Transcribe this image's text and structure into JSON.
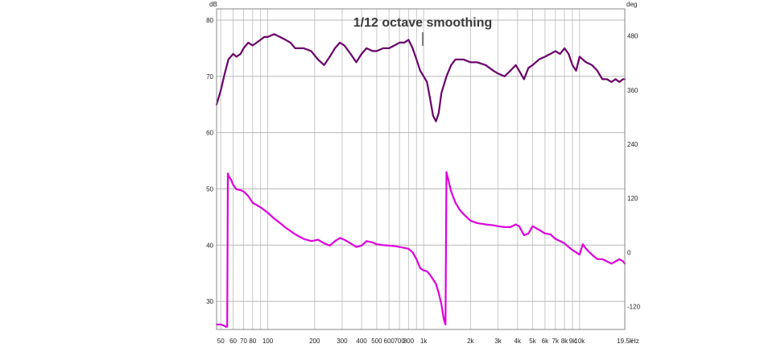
{
  "chart_data": {
    "type": "line",
    "title": "",
    "annotation": "1/12 octave smoothing",
    "x_axis": {
      "scale": "log",
      "range": [
        47,
        19500
      ],
      "unit_label": "Hz",
      "tick_values": [
        50,
        60,
        70,
        80,
        100,
        200,
        300,
        400,
        500,
        600,
        700,
        800,
        1000,
        2000,
        3000,
        4000,
        5000,
        6000,
        7000,
        8000,
        9000,
        10000,
        19500
      ],
      "tick_labels": [
        "50",
        "60",
        "70",
        "80",
        "100",
        "200",
        "300",
        "400",
        "500",
        "600",
        "700",
        "800",
        "1k",
        "2k",
        "3k",
        "4k",
        "5k",
        "6k",
        "7k",
        "8k",
        "9k",
        "10k",
        "19.5k"
      ]
    },
    "y_axis_left": {
      "unit_label": "dB",
      "range": [
        25,
        82
      ],
      "tick_values": [
        30,
        40,
        50,
        60,
        70,
        80
      ],
      "tick_labels": [
        "30",
        "40",
        "50",
        "60",
        "70",
        "80"
      ]
    },
    "y_axis_right": {
      "unit_label": "deg",
      "range": [
        -171,
        540
      ],
      "tick_values": [
        -120,
        0,
        120,
        240,
        360,
        480
      ],
      "tick_labels": [
        "-120",
        "0",
        "120",
        "240",
        "360",
        "480"
      ]
    },
    "grid": true,
    "series": [
      {
        "axis": "left",
        "color": "#6a006a",
        "x": [
          47,
          50,
          53,
          56,
          60,
          63,
          67,
          70,
          75,
          80,
          85,
          90,
          95,
          100,
          110,
          120,
          130,
          140,
          150,
          170,
          190,
          210,
          230,
          250,
          270,
          290,
          310,
          340,
          370,
          400,
          430,
          470,
          500,
          550,
          600,
          650,
          700,
          750,
          800,
          850,
          900,
          950,
          1000,
          1050,
          1100,
          1150,
          1200,
          1250,
          1300,
          1400,
          1500,
          1600,
          1800,
          2000,
          2200,
          2500,
          2800,
          3000,
          3300,
          3600,
          3900,
          4100,
          4400,
          4700,
          5000,
          5500,
          6000,
          6500,
          7000,
          7500,
          8000,
          8500,
          9000,
          9500,
          10000,
          10500,
          11000,
          12000,
          13000,
          14000,
          15000,
          16000,
          17000,
          18000,
          19000,
          19500
        ],
        "y": [
          65,
          67.5,
          70.5,
          73,
          74,
          73.5,
          74,
          75,
          76,
          75.5,
          76,
          76.5,
          77,
          77,
          77.5,
          77,
          76.5,
          76,
          75,
          75,
          74.5,
          73,
          72,
          73.5,
          75,
          76,
          75.5,
          74,
          72.5,
          74,
          75,
          74.5,
          74.5,
          75,
          75,
          75.5,
          76,
          76,
          76.5,
          75,
          73,
          71,
          70,
          69,
          66,
          63,
          62,
          63.5,
          67,
          70,
          72,
          73,
          73,
          72.5,
          72.5,
          72,
          71,
          70.5,
          70,
          71,
          72,
          71,
          69.5,
          71.5,
          72,
          73,
          73.5,
          74,
          74.5,
          74,
          75,
          74,
          72,
          71,
          73.5,
          73,
          72.5,
          72,
          71,
          69.5,
          69.5,
          69,
          69.5,
          69,
          69.5,
          69.5
        ]
      },
      {
        "axis": "right",
        "color": "#dd00dd",
        "x": [
          47,
          50,
          52,
          54,
          55,
          55.5,
          56,
          58,
          60,
          63,
          67,
          70,
          75,
          80,
          90,
          100,
          110,
          120,
          130,
          150,
          170,
          190,
          210,
          230,
          250,
          270,
          290,
          310,
          340,
          370,
          400,
          430,
          470,
          500,
          550,
          600,
          650,
          700,
          750,
          800,
          850,
          900,
          950,
          1000,
          1050,
          1100,
          1150,
          1200,
          1250,
          1300,
          1350,
          1380,
          1400,
          1500,
          1600,
          1700,
          1800,
          2000,
          2200,
          2500,
          2800,
          3000,
          3300,
          3600,
          3900,
          4100,
          4400,
          4700,
          5000,
          5500,
          6000,
          6500,
          7000,
          7500,
          8000,
          8500,
          9000,
          9500,
          10000,
          10500,
          11000,
          12000,
          13000,
          14000,
          15000,
          16000,
          17000,
          18000,
          19000,
          19500
        ],
        "y": [
          -160,
          -160,
          -162,
          -165,
          -165,
          175,
          170,
          162,
          150,
          140,
          138,
          135,
          125,
          110,
          100,
          88,
          75,
          65,
          55,
          40,
          30,
          25,
          28,
          20,
          15,
          25,
          32,
          28,
          20,
          12,
          15,
          25,
          22,
          18,
          16,
          15,
          14,
          12,
          10,
          8,
          0,
          -15,
          -35,
          -40,
          -42,
          -50,
          -60,
          -70,
          -90,
          -115,
          -150,
          -160,
          178,
          135,
          110,
          95,
          85,
          70,
          65,
          62,
          60,
          58,
          56,
          56,
          62,
          58,
          38,
          42,
          58,
          50,
          42,
          40,
          30,
          25,
          20,
          12,
          5,
          0,
          -5,
          18,
          8,
          -5,
          -15,
          -15,
          -20,
          -25,
          -20,
          -15,
          -20,
          -25
        ]
      }
    ]
  }
}
